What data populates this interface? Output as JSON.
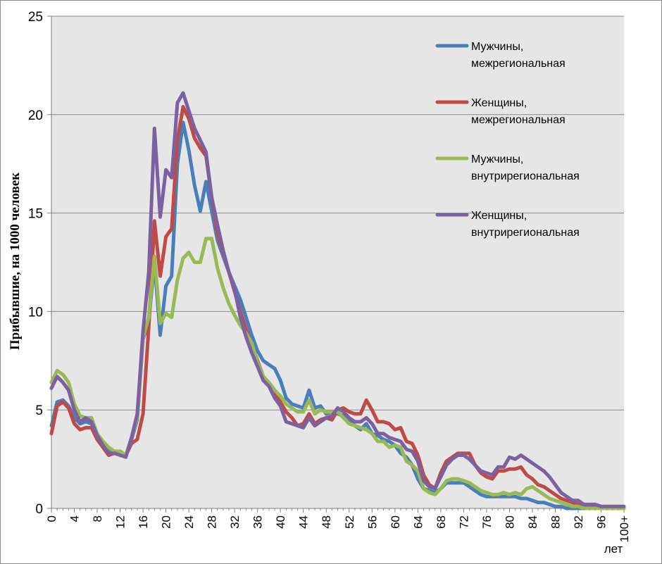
{
  "chart_data": {
    "type": "line",
    "title": "",
    "xlabel": "лет",
    "ylabel": "Прибывшие, на 1000 человек",
    "ylim": [
      0,
      25
    ],
    "yticks": [
      0,
      5,
      10,
      15,
      20,
      25
    ],
    "xlim": [
      0,
      100
    ],
    "xticks": [
      "0",
      "4",
      "8",
      "12",
      "16",
      "20",
      "24",
      "28",
      "32",
      "36",
      "40",
      "44",
      "48",
      "52",
      "56",
      "60",
      "64",
      "68",
      "72",
      "76",
      "80",
      "84",
      "88",
      "92",
      "96",
      "100+"
    ],
    "grid": true,
    "legend_position": "top-right",
    "x": [
      0,
      1,
      2,
      3,
      4,
      5,
      6,
      7,
      8,
      9,
      10,
      11,
      12,
      13,
      14,
      15,
      16,
      17,
      18,
      19,
      20,
      21,
      22,
      23,
      24,
      25,
      26,
      27,
      28,
      29,
      30,
      31,
      32,
      33,
      34,
      35,
      36,
      37,
      38,
      39,
      40,
      41,
      42,
      43,
      44,
      45,
      46,
      47,
      48,
      49,
      50,
      51,
      52,
      53,
      54,
      55,
      56,
      57,
      58,
      59,
      60,
      61,
      62,
      63,
      64,
      65,
      66,
      67,
      68,
      69,
      70,
      71,
      72,
      73,
      74,
      75,
      76,
      77,
      78,
      79,
      80,
      81,
      82,
      83,
      84,
      85,
      86,
      87,
      88,
      89,
      90,
      91,
      92,
      93,
      94,
      95,
      96,
      97,
      98,
      99,
      100
    ],
    "series": [
      {
        "name": "Мужчины, межрегиональная",
        "color": "#4a7ebb",
        "values": [
          4.2,
          5.4,
          5.5,
          5.2,
          4.6,
          4.3,
          4.4,
          4.3,
          3.7,
          3.2,
          2.9,
          2.8,
          2.8,
          2.7,
          3.5,
          4.5,
          8.6,
          9.5,
          12.5,
          8.8,
          11.3,
          11.8,
          17.5,
          19.6,
          18.2,
          16.4,
          15.1,
          16.6,
          15.1,
          13.6,
          12.8,
          12.0,
          11.3,
          10.6,
          9.7,
          8.8,
          8.0,
          7.5,
          7.3,
          7.1,
          6.5,
          5.6,
          5.3,
          5.2,
          5.1,
          6.0,
          5.1,
          5.2,
          4.8,
          4.9,
          4.8,
          4.7,
          4.5,
          4.2,
          4.0,
          4.3,
          3.8,
          3.7,
          3.5,
          3.4,
          3.2,
          2.8,
          2.6,
          2.2,
          1.5,
          1.0,
          0.9,
          0.8,
          1.0,
          1.3,
          1.3,
          1.3,
          1.3,
          1.1,
          0.9,
          0.7,
          0.6,
          0.6,
          0.6,
          0.6,
          0.6,
          0.6,
          0.5,
          0.5,
          0.4,
          0.3,
          0.3,
          0.2,
          0.1,
          0.1,
          0.0,
          0.0,
          0.0,
          0.0,
          0.0,
          0.0,
          0.0,
          0.0,
          0.0,
          0.0,
          0.0
        ]
      },
      {
        "name": "Женщины, межрегиональная",
        "color": "#be4b48",
        "values": [
          3.8,
          5.2,
          5.4,
          5.1,
          4.3,
          4.0,
          4.1,
          4.1,
          3.5,
          3.1,
          2.7,
          2.8,
          2.8,
          2.7,
          3.3,
          3.5,
          4.8,
          9.2,
          14.6,
          11.8,
          13.8,
          14.2,
          18.7,
          20.4,
          19.8,
          18.8,
          18.3,
          17.9,
          15.8,
          14.0,
          13.0,
          12.0,
          11.0,
          10.0,
          9.1,
          8.3,
          7.5,
          6.7,
          6.3,
          5.8,
          5.4,
          4.9,
          4.6,
          4.2,
          4.3,
          4.8,
          4.3,
          4.5,
          4.6,
          4.5,
          5.0,
          5.1,
          4.9,
          4.8,
          4.8,
          5.5,
          5.0,
          4.4,
          4.4,
          4.3,
          4.0,
          4.1,
          3.4,
          3.3,
          2.7,
          1.7,
          1.2,
          1.0,
          1.8,
          2.4,
          2.6,
          2.8,
          2.8,
          2.8,
          2.2,
          1.8,
          1.6,
          1.5,
          1.9,
          1.9,
          2.0,
          2.0,
          2.1,
          1.7,
          1.5,
          1.2,
          1.1,
          0.9,
          0.7,
          0.5,
          0.4,
          0.3,
          0.2,
          0.1,
          0.1,
          0.1,
          0.0,
          0.0,
          0.0,
          0.0,
          0.0
        ]
      },
      {
        "name": "Мужчины, внутрирегиональная",
        "color": "#98b954",
        "values": [
          6.4,
          7.0,
          6.8,
          6.4,
          5.3,
          4.7,
          4.6,
          4.6,
          3.8,
          3.4,
          3.1,
          2.9,
          2.9,
          2.7,
          3.6,
          4.6,
          8.7,
          9.7,
          12.8,
          9.4,
          9.9,
          9.7,
          11.6,
          12.7,
          13.0,
          12.5,
          12.5,
          13.7,
          13.7,
          12.2,
          11.2,
          10.4,
          9.8,
          9.3,
          8.9,
          8.4,
          7.4,
          6.7,
          6.4,
          6.0,
          5.7,
          5.3,
          5.1,
          4.9,
          4.9,
          5.5,
          4.8,
          5.0,
          4.9,
          4.9,
          4.9,
          4.6,
          4.3,
          4.2,
          4.1,
          4.0,
          3.8,
          3.4,
          3.4,
          3.1,
          3.2,
          3.1,
          2.4,
          2.2,
          1.9,
          1.0,
          0.8,
          0.7,
          1.0,
          1.4,
          1.5,
          1.5,
          1.4,
          1.3,
          1.1,
          0.9,
          0.8,
          0.7,
          0.7,
          0.8,
          0.7,
          0.8,
          0.7,
          1.0,
          1.1,
          0.9,
          0.7,
          0.5,
          0.4,
          0.3,
          0.2,
          0.1,
          0.1,
          0.0,
          0.0,
          0.0,
          0.0,
          0.0,
          0.0,
          0.0,
          0.0
        ]
      },
      {
        "name": "Женщины, внутрирегиональная",
        "color": "#7d60a0",
        "values": [
          6.1,
          6.7,
          6.4,
          6.0,
          5.0,
          4.4,
          4.6,
          4.4,
          3.7,
          3.2,
          2.8,
          2.8,
          2.7,
          2.6,
          3.6,
          4.8,
          9.0,
          12.0,
          19.3,
          14.8,
          17.2,
          16.8,
          20.6,
          21.1,
          20.2,
          19.3,
          18.7,
          18.1,
          15.8,
          14.4,
          13.1,
          12.0,
          11.1,
          9.7,
          8.7,
          7.9,
          7.2,
          6.5,
          6.2,
          5.6,
          5.2,
          4.4,
          4.3,
          4.2,
          4.1,
          4.6,
          4.2,
          4.4,
          4.6,
          4.7,
          5.1,
          4.9,
          4.6,
          4.4,
          4.4,
          4.6,
          4.3,
          3.8,
          3.8,
          3.6,
          3.5,
          3.4,
          3.0,
          2.9,
          2.4,
          1.4,
          1.1,
          1.0,
          1.6,
          2.2,
          2.5,
          2.7,
          2.7,
          2.5,
          2.2,
          1.9,
          1.8,
          1.7,
          2.1,
          2.1,
          2.6,
          2.5,
          2.7,
          2.5,
          2.3,
          2.1,
          1.9,
          1.6,
          1.2,
          0.8,
          0.6,
          0.4,
          0.4,
          0.2,
          0.2,
          0.2,
          0.1,
          0.1,
          0.1,
          0.1,
          0.1
        ]
      }
    ]
  }
}
